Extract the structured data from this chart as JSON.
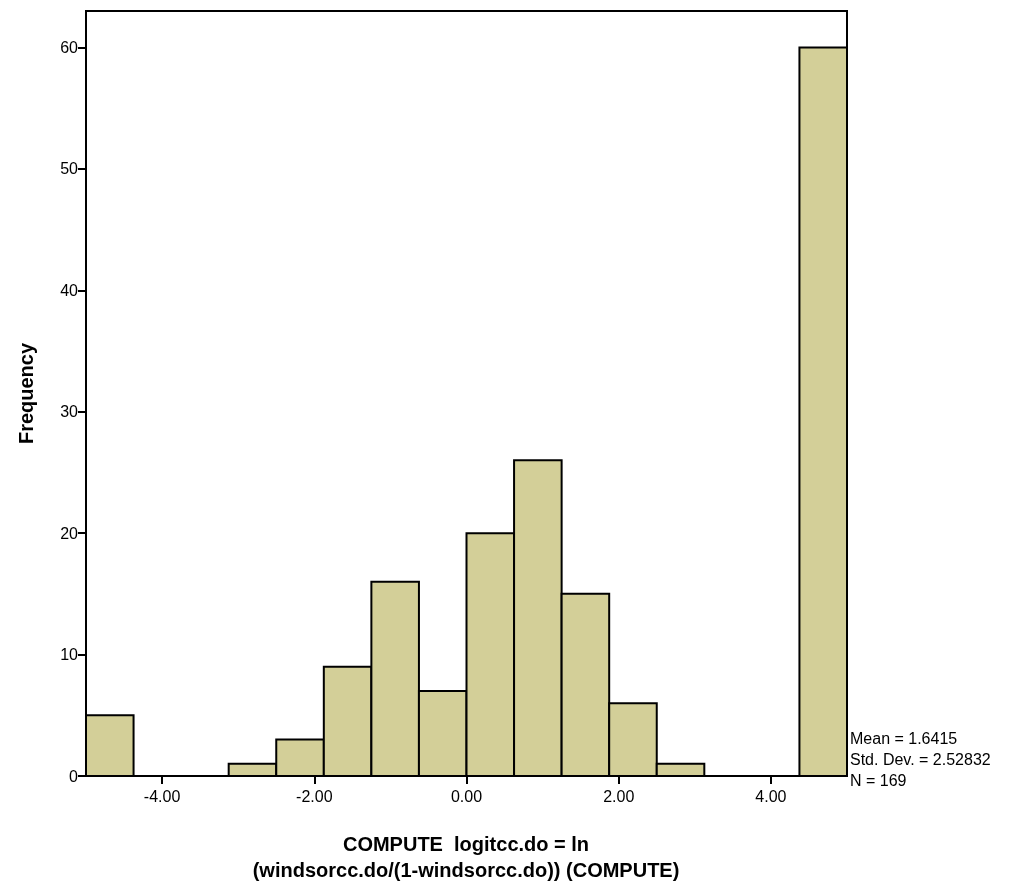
{
  "chart_data": {
    "type": "histogram",
    "xlabel": "COMPUTE  logitcc.do = ln (windsorcc.do/(1-windsorcc.do)) (COMPUTE)",
    "ylabel": "Frequency",
    "bins": [
      -5,
      -4.375,
      -3.75,
      -3.125,
      -2.5,
      -1.875,
      -1.25,
      -0.625,
      0,
      0.625,
      1.25,
      1.875,
      2.5,
      3.125,
      3.75,
      4.375,
      5
    ],
    "values": [
      5,
      0,
      0,
      1,
      3,
      9,
      16,
      7,
      20,
      26,
      15,
      6,
      1,
      0,
      0,
      60
    ],
    "color": "#d3cf98",
    "xlim": [
      -5,
      5
    ],
    "xticks": [
      {
        "value": -4,
        "label": "-4.00"
      },
      {
        "value": -2,
        "label": "-2.00"
      },
      {
        "value": 0,
        "label": "0.00"
      },
      {
        "value": 2,
        "label": "2.00"
      },
      {
        "value": 4,
        "label": "4.00"
      }
    ],
    "ylim": [
      0,
      63
    ],
    "yticks": [
      0,
      10,
      20,
      30,
      40,
      50,
      60
    ],
    "grid": false,
    "annotations": [
      "Mean = 1.6415",
      "Std. Dev. = 2.52832",
      "N = 169"
    ]
  }
}
